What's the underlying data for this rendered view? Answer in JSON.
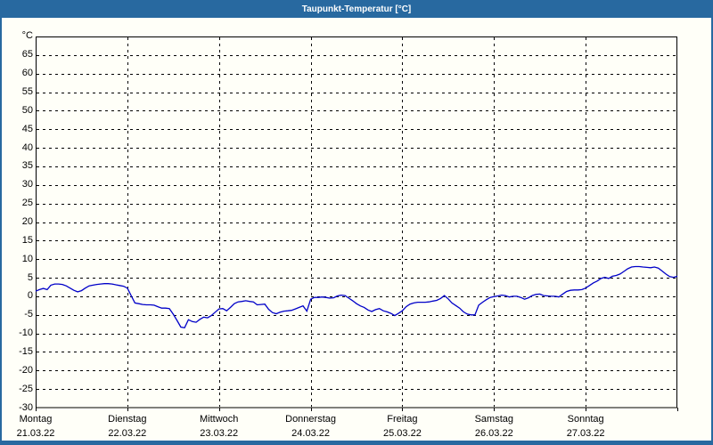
{
  "window": {
    "title": "Taupunkt-Temperatur [°C]"
  },
  "colors": {
    "titlebar_bg": "#2869a0",
    "frame": "#2869a0",
    "content_bg": "#fffff8",
    "plot_border": "#000000",
    "grid": "#000000",
    "line": "#0000c8",
    "title_text": "#ffffff",
    "axis_text": "#000000"
  },
  "chart_data": {
    "type": "line",
    "title": "Taupunkt-Temperatur [°C]",
    "ylabel": "°C",
    "ylim": [
      -30,
      70
    ],
    "ytick_step": 5,
    "ytick_labels": [
      "65",
      "60",
      "55",
      "50",
      "45",
      "40",
      "35",
      "30",
      "25",
      "20",
      "15",
      "10",
      "5",
      "0",
      "-5",
      "-10",
      "-15",
      "-20",
      "-25",
      "-30"
    ],
    "grid": "dashed",
    "legend": "none",
    "x_axis": {
      "total_hours": 168,
      "days": [
        {
          "name": "Montag",
          "date": "21.03.22"
        },
        {
          "name": "Dienstag",
          "date": "22.03.22"
        },
        {
          "name": "Mittwoch",
          "date": "23.03.22"
        },
        {
          "name": "Donnerstag",
          "date": "24.03.22"
        },
        {
          "name": "Freitag",
          "date": "25.03.22"
        },
        {
          "name": "Samstag",
          "date": "26.03.22"
        },
        {
          "name": "Sonntag",
          "date": "27.03.22"
        }
      ]
    },
    "series": [
      {
        "name": "Taupunkt-Temperatur",
        "unit": "°C",
        "color": "#0000c8",
        "x_step_hours": 1,
        "values": [
          1.4,
          1.8,
          2.1,
          1.8,
          3.0,
          3.3,
          3.3,
          3.2,
          2.8,
          2.2,
          1.6,
          1.2,
          1.5,
          2.2,
          2.8,
          3.0,
          3.2,
          3.3,
          3.4,
          3.4,
          3.3,
          3.1,
          2.9,
          2.7,
          2.2,
          0.2,
          -1.8,
          -2.0,
          -2.2,
          -2.3,
          -2.3,
          -2.4,
          -2.8,
          -3.2,
          -3.2,
          -3.3,
          -4.8,
          -6.5,
          -8.3,
          -8.5,
          -6.3,
          -6.8,
          -7.0,
          -6.2,
          -5.6,
          -5.8,
          -5.2,
          -4.3,
          -3.4,
          -3.3,
          -3.9,
          -3.0,
          -2.0,
          -1.5,
          -1.4,
          -1.2,
          -1.4,
          -1.5,
          -2.3,
          -2.2,
          -2.1,
          -3.5,
          -4.4,
          -4.7,
          -4.3,
          -4.0,
          -3.9,
          -3.8,
          -3.4,
          -3.0,
          -2.6,
          -4.0,
          -0.8,
          -0.3,
          -0.3,
          -0.2,
          -0.3,
          -0.5,
          -0.4,
          0.1,
          0.3,
          0.2,
          -0.5,
          -1.2,
          -2.0,
          -2.6,
          -3.0,
          -3.7,
          -4.1,
          -3.6,
          -3.3,
          -3.9,
          -4.2,
          -4.6,
          -5.2,
          -4.6,
          -3.9,
          -2.8,
          -2.1,
          -1.8,
          -1.6,
          -1.6,
          -1.6,
          -1.5,
          -1.3,
          -1.1,
          -0.6,
          0.2,
          -0.7,
          -1.8,
          -2.5,
          -3.2,
          -4.2,
          -4.8,
          -5.0,
          -5.0,
          -2.4,
          -1.6,
          -0.9,
          -0.3,
          -0.1,
          0.1,
          0.3,
          0.2,
          -0.2,
          0.0,
          0.0,
          -0.3,
          -0.8,
          -0.4,
          0.2,
          0.5,
          0.6,
          0.2,
          0.1,
          0.0,
          0.0,
          -0.2,
          0.6,
          1.3,
          1.6,
          1.7,
          1.7,
          1.8,
          2.2,
          2.9,
          3.6,
          4.1,
          4.8,
          5.1,
          4.8,
          5.4,
          5.6,
          6.0,
          6.7,
          7.4,
          7.9,
          8.0,
          8.0,
          7.9,
          7.8,
          7.7,
          7.9,
          7.6,
          6.8,
          6.0,
          5.3,
          5.1,
          5.4
        ]
      }
    ]
  }
}
